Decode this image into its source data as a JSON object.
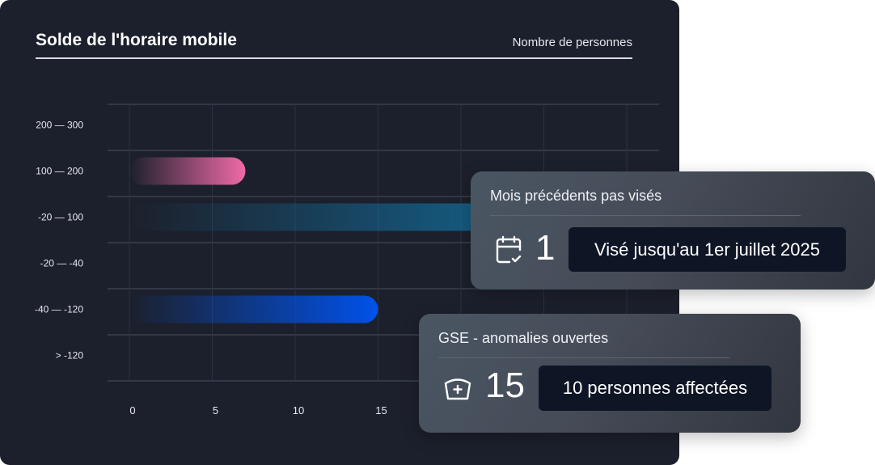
{
  "header": {
    "title": "Solde de l'horaire mobile",
    "subtitle": "Nombre de personnes"
  },
  "chart_data": {
    "type": "bar",
    "orientation": "horizontal",
    "categories": [
      "200 — 300",
      "100 — 200",
      "-20 — 100",
      "-20 — -40",
      "-40 — -120",
      "> -120"
    ],
    "values": [
      0,
      7,
      25,
      0,
      15,
      0
    ],
    "colors": [
      "#f06aa8",
      "#f06aa8",
      "#14658f",
      "#14658f",
      "#0052ea",
      "#0052ea"
    ],
    "x_ticks": [
      0,
      5,
      10,
      15
    ],
    "xlim": [
      0,
      30
    ],
    "grid": true
  },
  "cards": [
    {
      "title": "Mois précédents pas visés",
      "icon": "calendar-check-icon",
      "value": "1",
      "pill": "Visé jusqu'au 1er juillet 2025"
    },
    {
      "title": "GSE - anomalies ouvertes",
      "icon": "medical-cap-icon",
      "value": "15",
      "pill": "10 personnes affectées"
    }
  ]
}
